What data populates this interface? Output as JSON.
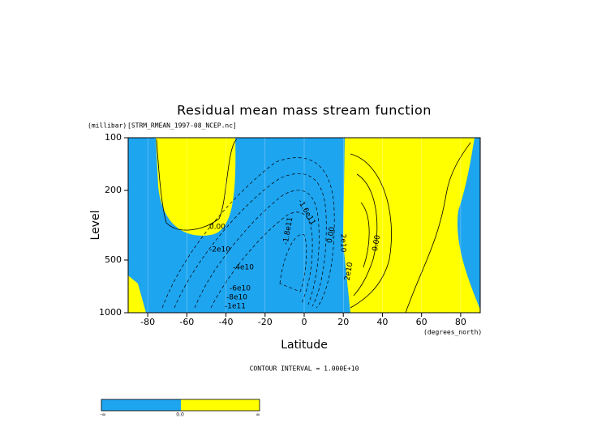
{
  "chart_data": {
    "type": "contour",
    "title": "Residual mean mass stream function",
    "subtitle": "[STRM_RMEAN_1997-08_NCEP.nc]",
    "y_unit": "(millibar)",
    "y_label": "Level",
    "x_label": "Latitude",
    "x_unit": "(degrees_north)",
    "footnote": "CONTOUR INTERVAL = 1.000E+10",
    "xlim": [
      -90,
      90
    ],
    "xticks": [
      -80,
      -60,
      -40,
      -20,
      0,
      20,
      40,
      60,
      80
    ],
    "ylim": [
      1000,
      100
    ],
    "yticks": [
      100,
      200,
      500,
      1000
    ],
    "log_y": true,
    "negative_color": "#1ea5f0",
    "positive_color": "#ffff00",
    "contour_labels": [
      "0.00",
      "-2e10",
      "-4e10",
      "-6e10",
      "-8e10",
      "-1e11",
      "-1.8e11",
      "-1.6e11",
      "0.00",
      "2e10",
      "2e10",
      "0.00"
    ],
    "colorbar_labels": [
      "-∞",
      "0.0",
      "∞"
    ]
  }
}
